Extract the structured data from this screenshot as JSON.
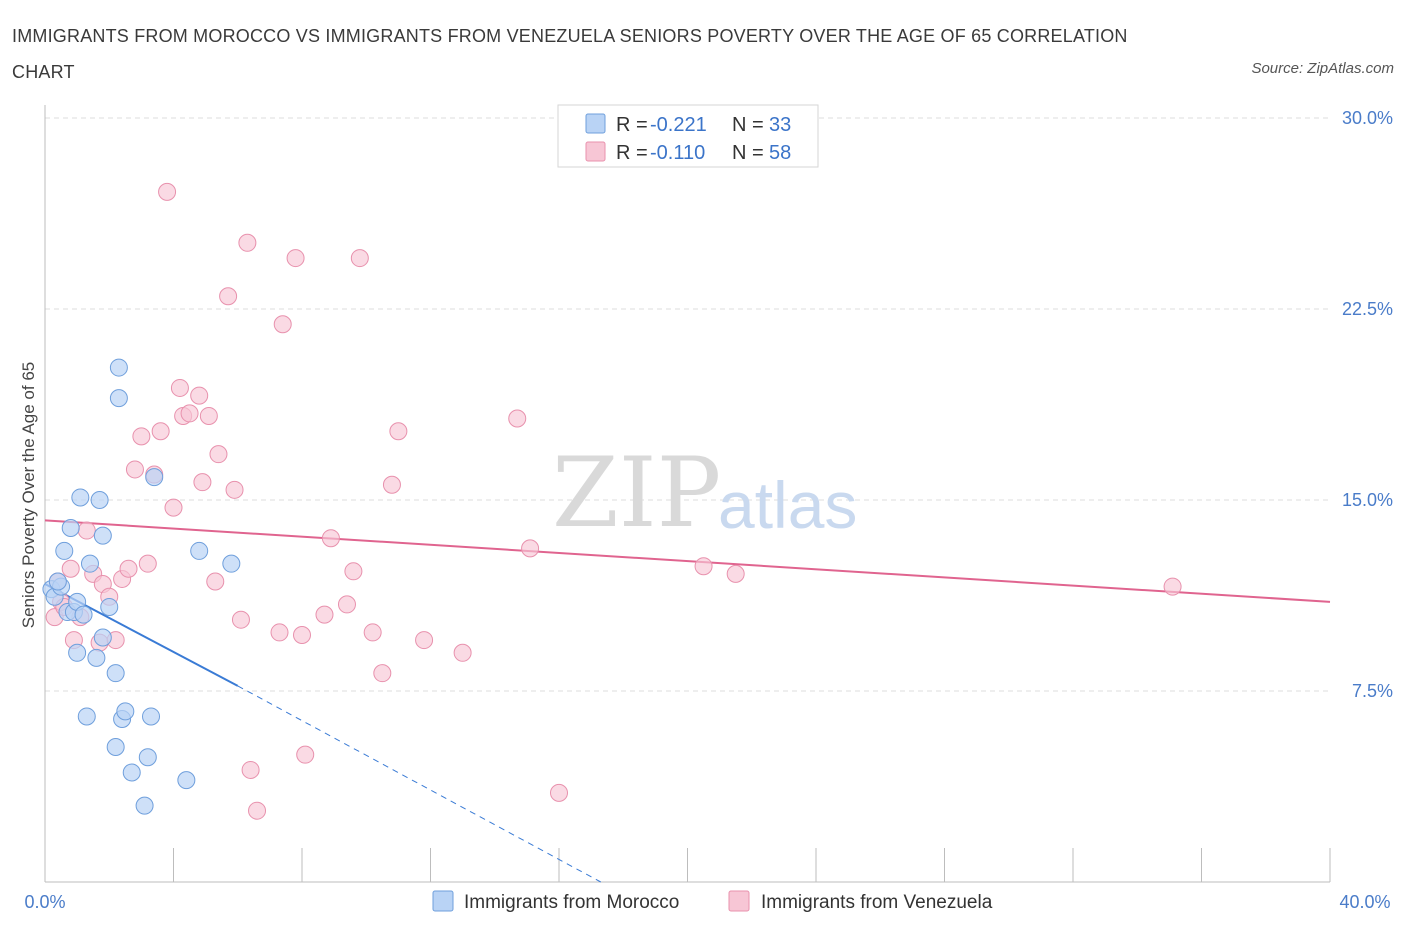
{
  "title": "IMMIGRANTS FROM MOROCCO VS IMMIGRANTS FROM VENEZUELA SENIORS POVERTY OVER THE AGE OF 65 CORRELATION CHART",
  "source": "Source: ZipAtlas.com",
  "watermark": {
    "zip": "ZIP",
    "atlas": "atlas"
  },
  "colors": {
    "morocco_fill": "#b9d3f5",
    "morocco_stroke": "#6f9fdc",
    "morocco_line": "#3a7bd5",
    "venezuela_fill": "#f7c6d5",
    "venezuela_stroke": "#e891ad",
    "venezuela_line": "#e0648f",
    "grid": "#dcdcdc",
    "axis_label": "#4a7cc9"
  },
  "legend": {
    "rows": [
      {
        "r_label": "R = ",
        "r_value": "-0.221",
        "n_label": "N = ",
        "n_value": "33"
      },
      {
        "r_label": "R = ",
        "r_value": "-0.110",
        "n_label": "N = ",
        "n_value": "58"
      }
    ]
  },
  "chart_data": {
    "type": "scatter",
    "title": "IMMIGRANTS FROM MOROCCO VS IMMIGRANTS FROM VENEZUELA SENIORS POVERTY OVER THE AGE OF 65 CORRELATION CHART",
    "xlabel": "",
    "ylabel": "Seniors Poverty Over the Age of 65",
    "xlim": [
      0,
      40
    ],
    "ylim": [
      0,
      30
    ],
    "x_tick_labels": [
      "0.0%",
      "40.0%"
    ],
    "y_ticks": [
      7.5,
      15.0,
      22.5,
      30.0
    ],
    "y_tick_labels": [
      "7.5%",
      "15.0%",
      "22.5%",
      "30.0%"
    ],
    "grid": true,
    "legend_position": "top-center",
    "series": [
      {
        "name": "Immigrants from Morocco",
        "R": -0.221,
        "N": 33,
        "points": [
          [
            0.2,
            11.5
          ],
          [
            0.3,
            11.2
          ],
          [
            0.5,
            11.6
          ],
          [
            0.6,
            13.0
          ],
          [
            0.7,
            10.6
          ],
          [
            0.8,
            13.9
          ],
          [
            0.9,
            10.6
          ],
          [
            1.0,
            11.0
          ],
          [
            1.0,
            9.0
          ],
          [
            1.1,
            15.1
          ],
          [
            1.2,
            10.5
          ],
          [
            1.3,
            6.5
          ],
          [
            1.4,
            12.5
          ],
          [
            1.6,
            8.8
          ],
          [
            1.7,
            15.0
          ],
          [
            1.8,
            9.6
          ],
          [
            1.8,
            13.6
          ],
          [
            2.0,
            10.8
          ],
          [
            2.2,
            8.2
          ],
          [
            2.3,
            19.0
          ],
          [
            2.3,
            20.2
          ],
          [
            2.4,
            6.4
          ],
          [
            2.5,
            6.7
          ],
          [
            2.2,
            5.3
          ],
          [
            2.7,
            4.3
          ],
          [
            3.2,
            4.9
          ],
          [
            3.1,
            3.0
          ],
          [
            3.3,
            6.5
          ],
          [
            3.4,
            15.9
          ],
          [
            4.4,
            4.0
          ],
          [
            4.8,
            13.0
          ],
          [
            5.8,
            12.5
          ],
          [
            0.4,
            11.8
          ]
        ],
        "trend_solid": [
          [
            0.0,
            11.7
          ],
          [
            6.0,
            7.7
          ]
        ],
        "trend_dashed": [
          [
            6.0,
            7.7
          ],
          [
            17.3,
            0.0
          ]
        ]
      },
      {
        "name": "Immigrants from Venezuela",
        "R": -0.11,
        "N": 58,
        "points": [
          [
            0.3,
            10.4
          ],
          [
            0.4,
            11.8
          ],
          [
            0.5,
            11.0
          ],
          [
            0.6,
            10.8
          ],
          [
            0.8,
            12.3
          ],
          [
            0.9,
            9.5
          ],
          [
            1.1,
            10.4
          ],
          [
            1.3,
            13.8
          ],
          [
            1.5,
            12.1
          ],
          [
            1.7,
            9.4
          ],
          [
            1.8,
            11.7
          ],
          [
            2.0,
            11.2
          ],
          [
            2.2,
            9.5
          ],
          [
            2.4,
            11.9
          ],
          [
            2.6,
            12.3
          ],
          [
            2.8,
            16.2
          ],
          [
            3.0,
            17.5
          ],
          [
            3.2,
            12.5
          ],
          [
            3.4,
            16.0
          ],
          [
            3.6,
            17.7
          ],
          [
            3.8,
            27.1
          ],
          [
            4.0,
            14.7
          ],
          [
            4.2,
            19.4
          ],
          [
            4.3,
            18.3
          ],
          [
            4.5,
            18.4
          ],
          [
            4.8,
            19.1
          ],
          [
            4.9,
            15.7
          ],
          [
            5.1,
            18.3
          ],
          [
            5.3,
            11.8
          ],
          [
            5.4,
            16.8
          ],
          [
            5.7,
            23.0
          ],
          [
            5.9,
            15.4
          ],
          [
            6.1,
            10.3
          ],
          [
            6.3,
            25.1
          ],
          [
            6.4,
            4.4
          ],
          [
            6.6,
            2.8
          ],
          [
            7.3,
            9.8
          ],
          [
            7.4,
            21.9
          ],
          [
            7.8,
            24.5
          ],
          [
            8.0,
            9.7
          ],
          [
            8.1,
            5.0
          ],
          [
            8.7,
            10.5
          ],
          [
            8.9,
            13.5
          ],
          [
            9.4,
            10.9
          ],
          [
            9.6,
            12.2
          ],
          [
            9.8,
            24.5
          ],
          [
            10.2,
            9.8
          ],
          [
            10.5,
            8.2
          ],
          [
            10.8,
            15.6
          ],
          [
            11.0,
            17.7
          ],
          [
            11.8,
            9.5
          ],
          [
            13.0,
            9.0
          ],
          [
            14.7,
            18.2
          ],
          [
            15.1,
            13.1
          ],
          [
            16.0,
            3.5
          ],
          [
            20.5,
            12.4
          ],
          [
            21.5,
            12.1
          ],
          [
            35.1,
            11.6
          ]
        ],
        "trend_solid": [
          [
            0.0,
            14.2
          ],
          [
            40.0,
            11.0
          ]
        ]
      }
    ]
  }
}
